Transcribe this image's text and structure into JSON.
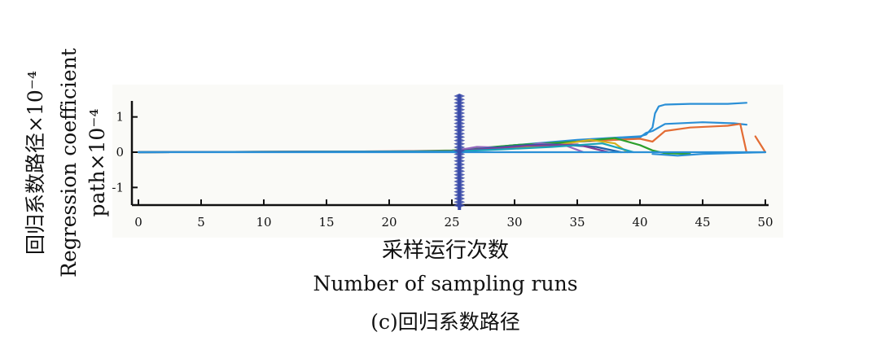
{
  "chart_data": {
    "type": "line",
    "title": "",
    "caption": "(c)回归系数路径",
    "xlabel_cn": "采样运行次数",
    "xlabel_en": "Number of sampling runs",
    "ylabel_cn": "回归系数路径×10⁻⁴",
    "ylabel_en_line1": "Regression coefficient",
    "ylabel_en_line2": "path×10⁻⁴",
    "xlim": [
      0,
      50
    ],
    "ylim": [
      -1.5,
      1.5
    ],
    "x_ticks": [
      0,
      5,
      10,
      15,
      20,
      25,
      30,
      35,
      40,
      45,
      50
    ],
    "y_ticks": [
      -1,
      0,
      1
    ],
    "y_tick_labels": [
      "-1",
      "0",
      "1"
    ],
    "grid": false,
    "legend": "none",
    "marker_line": {
      "x": 25.6,
      "color": "#3a4aa8"
    },
    "series": [
      {
        "color": "#2a8fd6",
        "x": [
          0,
          25,
          30,
          35,
          40,
          40.5,
          41,
          41.2,
          41.5,
          42,
          44,
          47,
          48.5
        ],
        "y": [
          0,
          0.02,
          0.2,
          0.35,
          0.45,
          0.5,
          0.7,
          1.1,
          1.3,
          1.35,
          1.37,
          1.37,
          1.4
        ]
      },
      {
        "color": "#2a8fd6",
        "x": [
          0,
          25,
          30,
          35,
          38,
          40,
          40.5,
          41,
          42,
          45,
          47.5,
          48.5
        ],
        "y": [
          0,
          0.02,
          0.2,
          0.3,
          0.35,
          0.42,
          0.55,
          0.6,
          0.8,
          0.85,
          0.82,
          0.78
        ]
      },
      {
        "color": "#e36c34",
        "x": [
          0,
          25,
          30,
          35,
          40,
          41,
          41.5,
          42,
          44,
          47,
          48,
          48.5
        ],
        "y": [
          0,
          0.02,
          0.15,
          0.3,
          0.38,
          0.3,
          0.45,
          0.6,
          0.7,
          0.75,
          0.8,
          0
        ]
      },
      {
        "color": "#e36c34",
        "x": [
          49.2,
          50
        ],
        "y": [
          0.45,
          0
        ]
      },
      {
        "color": "#2ca02c",
        "x": [
          0,
          20,
          25,
          30,
          35,
          38,
          40,
          41,
          42,
          44
        ],
        "y": [
          0,
          0.02,
          0.05,
          0.2,
          0.3,
          0.4,
          0.2,
          0.05,
          -0.03,
          -0.05
        ]
      },
      {
        "color": "#9467bd",
        "x": [
          0,
          25,
          27,
          30,
          32,
          34,
          35.5
        ],
        "y": [
          0,
          0.03,
          0.15,
          0.12,
          0.25,
          0.2,
          0
        ]
      },
      {
        "color": "#d4b21e",
        "x": [
          0,
          25,
          29,
          33,
          36,
          38,
          39
        ],
        "y": [
          0,
          0.03,
          0.1,
          0.18,
          0.35,
          0.25,
          0
        ]
      },
      {
        "color": "#1f5fa8",
        "x": [
          0,
          25,
          28,
          31,
          33.5,
          36.5,
          38.5
        ],
        "y": [
          0,
          0.02,
          0.12,
          0.2,
          0.22,
          0.15,
          0
        ]
      },
      {
        "color": "#7f3f98",
        "x": [
          0,
          25,
          28,
          31,
          35,
          37.5
        ],
        "y": [
          0,
          0.03,
          0.1,
          0.18,
          0.22,
          0
        ]
      },
      {
        "color": "#17a2b8",
        "x": [
          0,
          25,
          29,
          33,
          37,
          39.5
        ],
        "y": [
          0,
          0.02,
          0.08,
          0.15,
          0.25,
          0
        ]
      },
      {
        "color": "#2a8fd6",
        "x": [
          41,
          43,
          45,
          50
        ],
        "y": [
          -0.05,
          -0.1,
          -0.05,
          0
        ]
      },
      {
        "color": "#2a8fd6",
        "x": [
          0,
          50
        ],
        "y": [
          0,
          0
        ]
      }
    ]
  }
}
